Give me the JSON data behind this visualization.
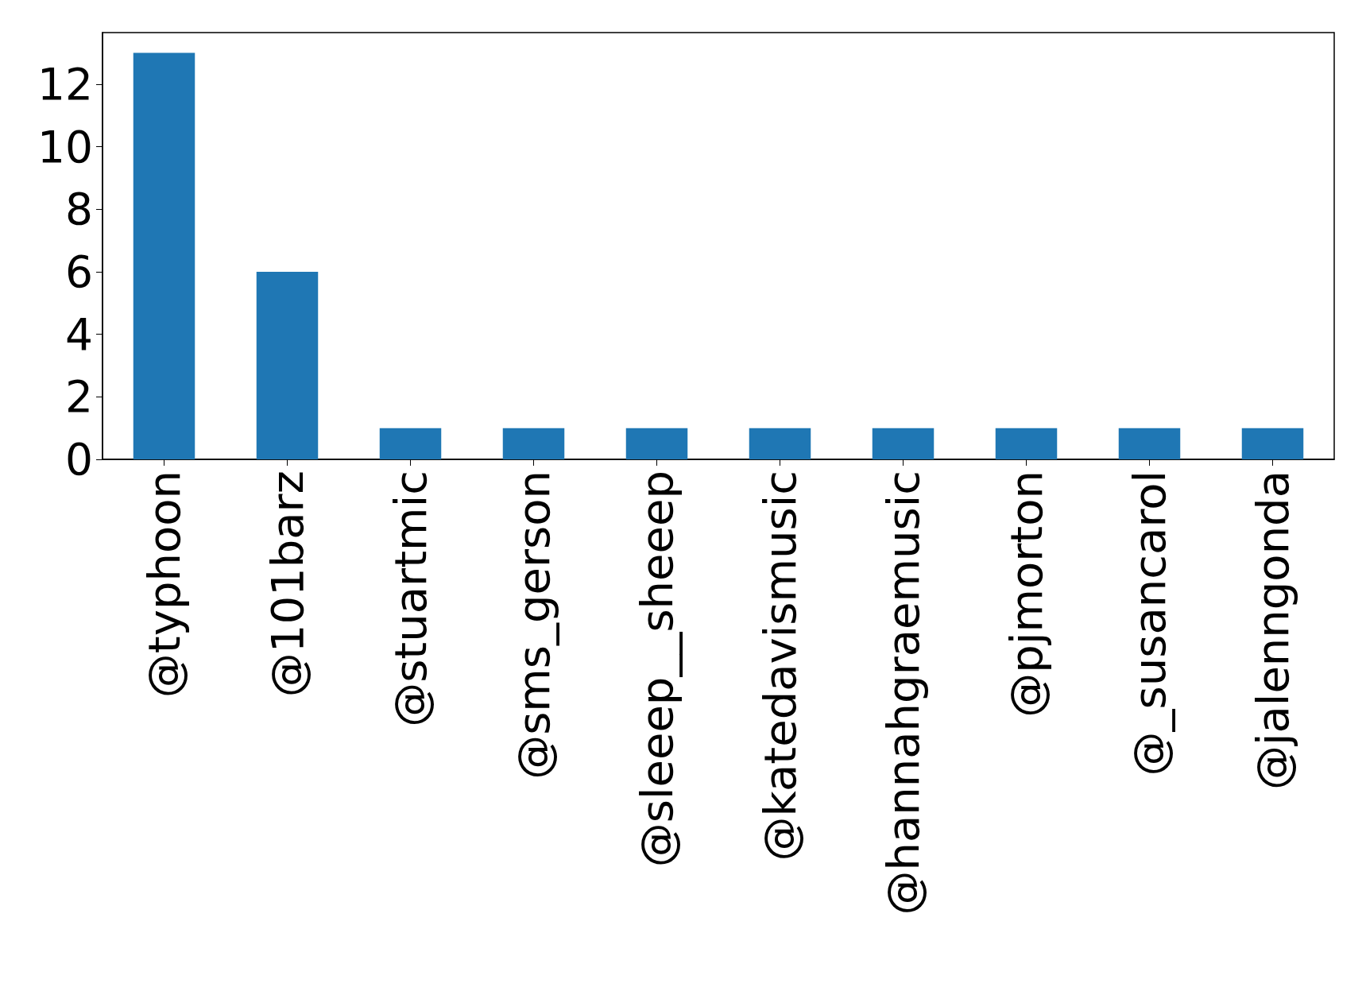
{
  "chart_data": {
    "type": "bar",
    "categories": [
      "@typhoon",
      "@101barz",
      "@stuartmic",
      "@sms_gerson",
      "@sleeep__sheeep",
      "@katedavismusic",
      "@hannahgraemusic",
      "@pjmorton",
      "@_susancarol",
      "@jalenngonda"
    ],
    "values": [
      13,
      6,
      1,
      1,
      1,
      1,
      1,
      1,
      1,
      1
    ],
    "color": "#1f77b4",
    "ylim": [
      0,
      13.65
    ],
    "yticks": [
      0,
      2,
      4,
      6,
      8,
      10,
      12
    ],
    "grid": false
  }
}
